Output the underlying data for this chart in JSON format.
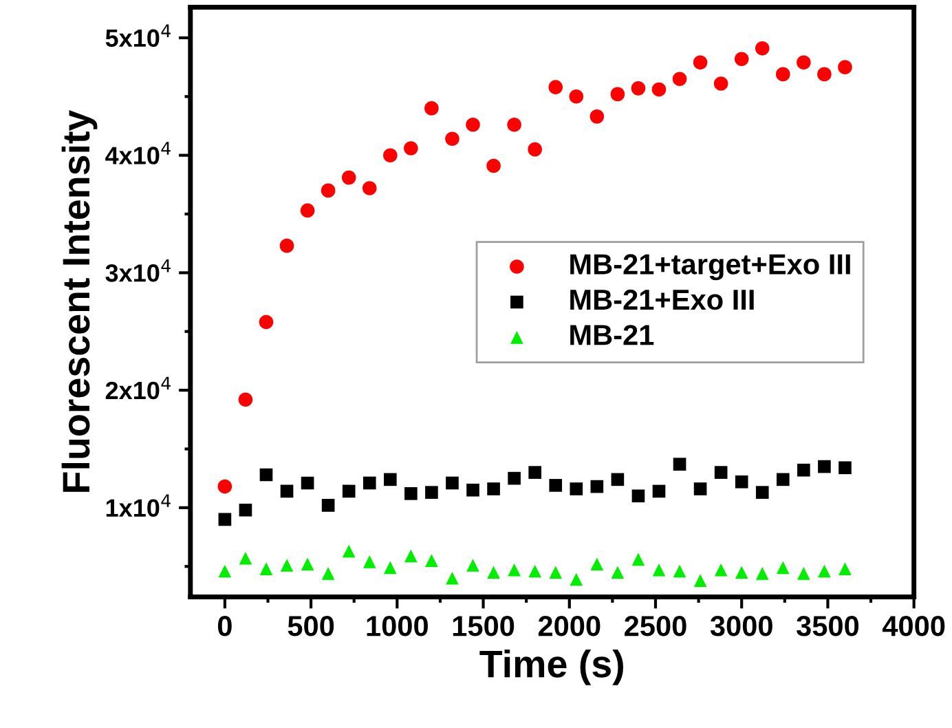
{
  "chart_data": {
    "type": "scatter",
    "xlabel": "Time (s)",
    "ylabel": "Fluorescent Intensity",
    "x": [
      0,
      120,
      240,
      360,
      480,
      600,
      720,
      840,
      960,
      1080,
      1200,
      1320,
      1440,
      1560,
      1680,
      1800,
      1920,
      2040,
      2160,
      2280,
      2400,
      2520,
      2640,
      2760,
      2880,
      3000,
      3120,
      3240,
      3360,
      3480,
      3600
    ],
    "series": [
      {
        "name": "MB-21+target+Exo III",
        "color": "#ff0000",
        "marker": "circle",
        "values": [
          11800,
          19200,
          25800,
          32300,
          35300,
          37000,
          38100,
          37200,
          40000,
          40600,
          44000,
          41400,
          42600,
          39100,
          42600,
          40500,
          45800,
          45000,
          43300,
          45200,
          45700,
          45600,
          46500,
          47900,
          46100,
          48200,
          49100,
          46900,
          47900,
          46900,
          47500
        ]
      },
      {
        "name": "MB-21+Exo III",
        "color": "#000000",
        "marker": "square",
        "values": [
          9000,
          9800,
          12800,
          11400,
          12100,
          10200,
          11400,
          12100,
          12400,
          11200,
          11300,
          12100,
          11500,
          11600,
          12500,
          13000,
          11900,
          11600,
          11800,
          12400,
          11000,
          11400,
          13700,
          11600,
          13000,
          12200,
          11300,
          12400,
          13200,
          13500,
          13400
        ]
      },
      {
        "name": "MB-21",
        "color": "#00ee00",
        "marker": "triangle",
        "values": [
          4600,
          5700,
          4800,
          5100,
          5200,
          4400,
          6300,
          5400,
          4900,
          5900,
          5500,
          4000,
          5100,
          4500,
          4700,
          4600,
          4500,
          3900,
          5200,
          4500,
          5600,
          4700,
          4600,
          3800,
          4700,
          4500,
          4400,
          4900,
          4400,
          4600,
          4800
        ]
      }
    ],
    "xlim": [
      -200,
      4000
    ],
    "xticks": [
      0,
      500,
      1000,
      1500,
      2000,
      2500,
      3000,
      3500,
      4000
    ],
    "ylim": [
      2400,
      52600
    ],
    "yticks": [
      {
        "value": 10000,
        "label": "1x10$^{4}$"
      },
      {
        "value": 20000,
        "label": "2x10$^{4}$"
      },
      {
        "value": 30000,
        "label": "3x10$^{4}$"
      },
      {
        "value": 40000,
        "label": "4x10$^{4}$"
      },
      {
        "value": 50000,
        "label": "5x10$^{4}$"
      }
    ],
    "legend": "right",
    "grid": false
  }
}
